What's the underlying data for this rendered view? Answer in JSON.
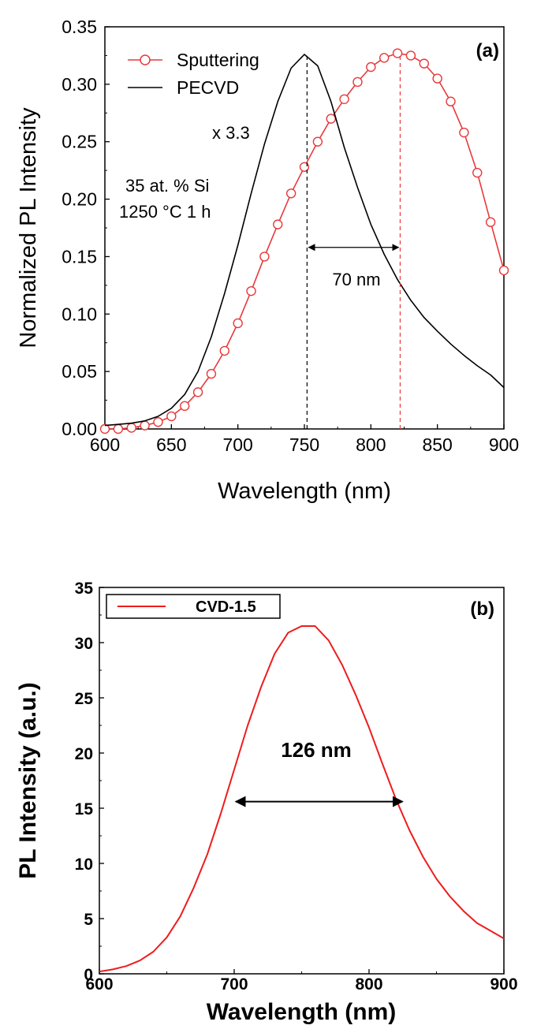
{
  "chart_data": [
    {
      "type": "line",
      "panel_label": "(a)",
      "xlabel": "Wavelength (nm)",
      "ylabel": "Normalized PL Intensity",
      "xlim": [
        600,
        900
      ],
      "ylim": [
        0,
        0.35
      ],
      "x_ticks": [
        "600",
        "650",
        "700",
        "750",
        "800",
        "850",
        "900"
      ],
      "y_ticks": [
        "0.00",
        "0.05",
        "0.10",
        "0.15",
        "0.20",
        "0.25",
        "0.30",
        "0.35"
      ],
      "legend_position": "top-left",
      "series": [
        {
          "name": "Sputtering",
          "color": "#e8393b",
          "marker": "open-circle",
          "x": [
            600,
            610,
            620,
            630,
            640,
            650,
            660,
            670,
            680,
            690,
            700,
            710,
            720,
            730,
            740,
            750,
            760,
            770,
            780,
            790,
            800,
            810,
            820,
            830,
            840,
            850,
            860,
            870,
            880,
            890,
            900
          ],
          "y": [
            0.0,
            0.0,
            0.001,
            0.003,
            0.006,
            0.011,
            0.02,
            0.032,
            0.048,
            0.068,
            0.092,
            0.12,
            0.15,
            0.178,
            0.205,
            0.228,
            0.25,
            0.27,
            0.287,
            0.302,
            0.315,
            0.323,
            0.327,
            0.325,
            0.318,
            0.305,
            0.285,
            0.258,
            0.223,
            0.18,
            0.138
          ]
        },
        {
          "name": "PECVD",
          "color": "#000000",
          "marker": "none",
          "x": [
            600,
            610,
            620,
            630,
            640,
            650,
            660,
            670,
            680,
            690,
            700,
            710,
            720,
            730,
            740,
            750,
            760,
            770,
            780,
            790,
            800,
            810,
            820,
            830,
            840,
            850,
            860,
            870,
            880,
            890,
            900
          ],
          "y": [
            0.003,
            0.004,
            0.005,
            0.007,
            0.011,
            0.018,
            0.03,
            0.05,
            0.08,
            0.118,
            0.16,
            0.205,
            0.248,
            0.285,
            0.314,
            0.326,
            0.316,
            0.285,
            0.245,
            0.21,
            0.178,
            0.152,
            0.13,
            0.112,
            0.097,
            0.085,
            0.074,
            0.064,
            0.055,
            0.047,
            0.036
          ]
        }
      ],
      "annotations": {
        "scale_note": "x 3.3",
        "sample_line1": "35 at. % Si",
        "sample_line2": "1250 °C 1 h",
        "separation": "70 nm",
        "separation_from": 752,
        "separation_to": 822,
        "arrow_y": 0.158
      }
    },
    {
      "type": "line",
      "panel_label": "(b)",
      "xlabel": "Wavelength (nm)",
      "ylabel": "PL Intensity (a.u.)",
      "xlim": [
        600,
        900
      ],
      "ylim": [
        0,
        35
      ],
      "x_ticks": [
        "600",
        "700",
        "800",
        "900"
      ],
      "y_ticks": [
        "0",
        "5",
        "10",
        "15",
        "20",
        "25",
        "30",
        "35"
      ],
      "legend_position": "top-left",
      "series": [
        {
          "name": "CVD-1.5",
          "color": "#ee1c1c",
          "x": [
            600,
            610,
            620,
            630,
            640,
            650,
            660,
            670,
            680,
            690,
            700,
            710,
            720,
            730,
            740,
            750,
            760,
            770,
            780,
            790,
            800,
            810,
            820,
            830,
            840,
            850,
            860,
            870,
            880,
            890,
            900
          ],
          "y": [
            0.2,
            0.4,
            0.7,
            1.2,
            2.0,
            3.3,
            5.2,
            7.8,
            10.8,
            14.5,
            18.5,
            22.5,
            26.0,
            29.0,
            30.9,
            31.5,
            31.5,
            30.2,
            28.0,
            25.3,
            22.3,
            19.0,
            15.8,
            13.0,
            10.6,
            8.6,
            7.0,
            5.7,
            4.6,
            3.9,
            3.2
          ]
        }
      ],
      "annotations": {
        "fwhm": "126 nm",
        "fwhm_from": 700,
        "fwhm_to": 826,
        "arrow_y": 15.6
      }
    }
  ]
}
